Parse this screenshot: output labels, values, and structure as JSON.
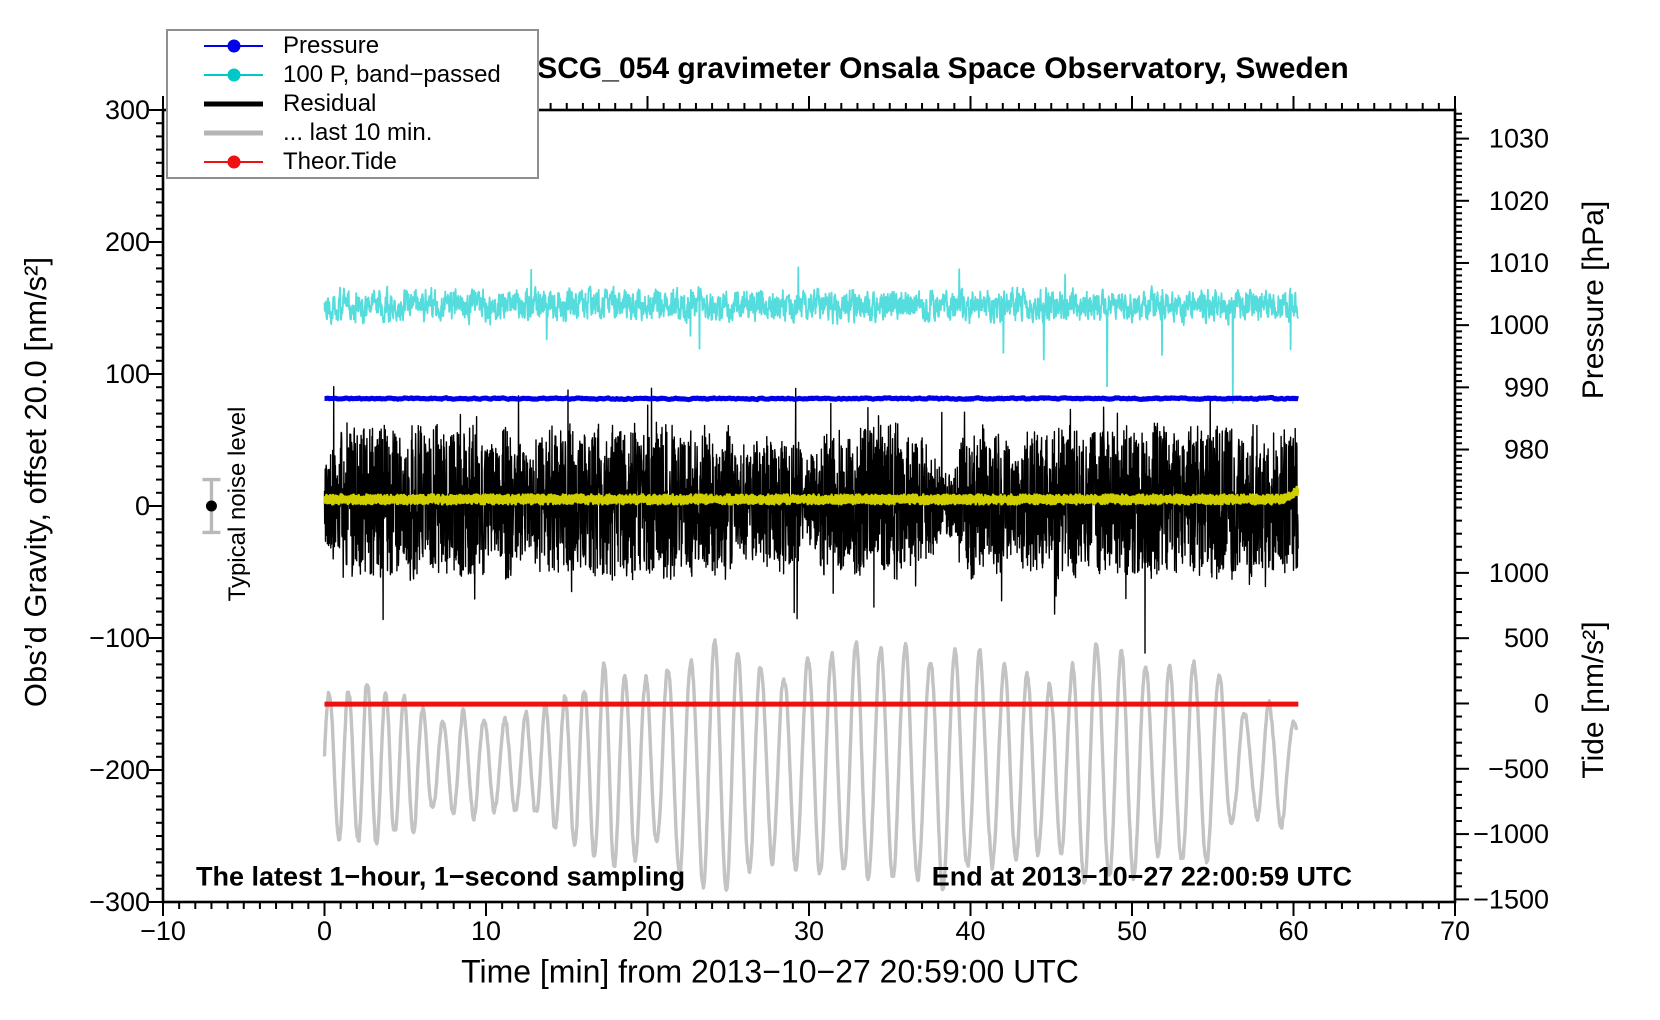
{
  "window": {
    "background": "#ffffff"
  },
  "chart_data": {
    "type": "line",
    "title": "SCG_054 gravimeter Onsala Space Observatory, Sweden",
    "xlabel": "Time [min] from 2013−10−27 20:59:00 UTC",
    "x_axis": {
      "range": [
        -10,
        70
      ],
      "major_ticks": [
        -10,
        0,
        10,
        20,
        30,
        40,
        50,
        60,
        70
      ],
      "minor_step": 1
    },
    "y_left_axis": {
      "label": "Obs’d Gravity, offset 20.0 [nm/s²]",
      "range": [
        -300,
        300
      ],
      "major_ticks": [
        300,
        200,
        100,
        0,
        -100,
        -200,
        -300
      ],
      "minor_step": 10
    },
    "pressure_axis": {
      "label": "Pressure [hPa]",
      "shown_range": [
        1034.6,
        971.4
      ],
      "major_ticks": [
        1030,
        1020,
        1010,
        1000,
        990,
        980
      ],
      "minor_step": 1
    },
    "tide_axis": {
      "label": "Tide [nm/s²]",
      "shown_range": [
        1535,
        -1520
      ],
      "major_ticks": [
        1000,
        500,
        0,
        -500,
        -1000,
        -1500
      ],
      "minor_step": 100
    },
    "legend": {
      "items": [
        {
          "label": "Pressure",
          "color": "#0202e8",
          "style": "thin-dot"
        },
        {
          "label": "100 P, band−passed",
          "color": "#00c8c8",
          "style": "thin-dot"
        },
        {
          "label": "Residual",
          "color": "#000000",
          "style": "thick"
        },
        {
          "label": "... last 10 min.",
          "color": "#b5b5b5",
          "style": "thick"
        },
        {
          "label": "Theor.Tide",
          "color": "#ee1111",
          "style": "thin-dot"
        }
      ]
    },
    "annotations": {
      "bottom_left": "The latest 1−hour, 1−second sampling",
      "bottom_right": "End at 2013−10−27 22:00:59 UTC"
    },
    "noise_marker": {
      "label": "Typical noise level",
      "x_min": -7,
      "value": 0,
      "error": 20
    },
    "series": [
      {
        "name": "Pressure",
        "axis": "pressure",
        "color": "#0202e8",
        "width": 5,
        "x_span": [
          0,
          60.3
        ],
        "mean_hPa": 988.2,
        "variation_hPa": 0.3,
        "seed": 11
      },
      {
        "name": "100 P, band−passed",
        "axis": "gravity",
        "color": "#55dcdc",
        "width": 1.8,
        "x_span": [
          0,
          60.3
        ],
        "mean": 152,
        "typical_amplitude": 12,
        "spike_depth_max": 65,
        "seed": 22
      },
      {
        "name": "Residual",
        "axis": "gravity",
        "color": "#000000",
        "width": 1.4,
        "x_span": [
          0,
          60.3
        ],
        "mean": 3,
        "band_halfwidth_min": 16,
        "band_halfwidth_max": 60,
        "spike_max": 125,
        "seed": 33
      },
      {
        "name": "Residual filtered",
        "axis": "gravity",
        "color": "#cfcf00",
        "width": 2.6,
        "x_span": [
          0,
          60.3
        ],
        "mean": 5,
        "amplitude": 2.5,
        "seed": 44
      },
      {
        "name": "Theor.Tide",
        "axis": "tide",
        "color": "#ee1111",
        "width": 5,
        "x_span": [
          0,
          60.3
        ],
        "value": -5
      },
      {
        "name": "... last 10 min.",
        "axis": "gravity",
        "color": "#c3c3c3",
        "width": 3.4,
        "x_span": [
          0,
          60.2
        ],
        "mean": -196,
        "amplitude_min": 32,
        "amplitude_max": 95,
        "period_min": 0.95,
        "period_max": 1.6,
        "seed": 55
      }
    ]
  }
}
